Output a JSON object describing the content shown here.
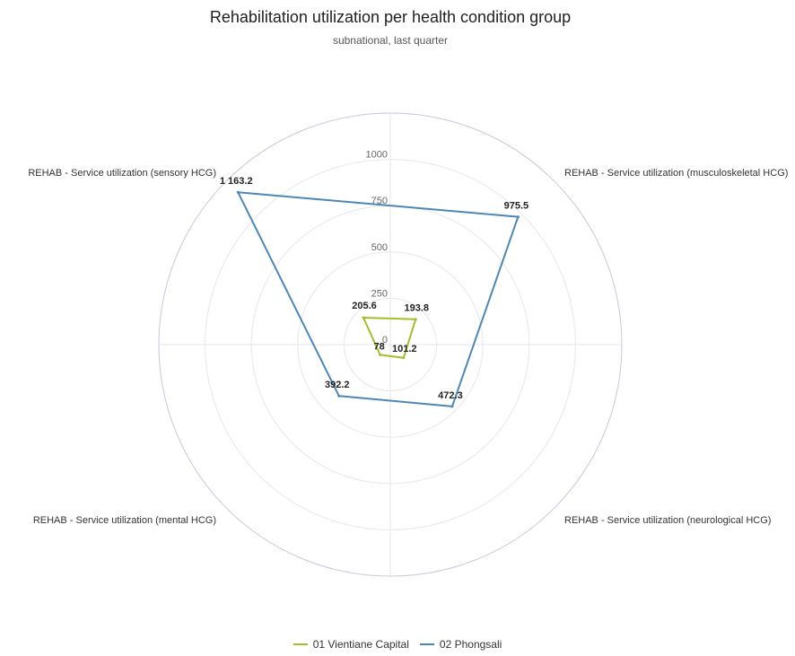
{
  "chart_data": {
    "type": "radar",
    "title": "Rehabilitation utilization per health condition group",
    "subtitle": "subnational, last quarter",
    "axes": [
      "REHAB - Service utilization (musculoskeletal HCG)",
      "REHAB - Service utilization (neurological HCG)",
      "REHAB - Service utilization (mental HCG)",
      "REHAB - Service utilization (sensory HCG)"
    ],
    "r_ticks": [
      0,
      250,
      500,
      750,
      1000
    ],
    "r_tick_labels": [
      "0",
      "250",
      "500",
      "750",
      "1000"
    ],
    "r_max": 1250,
    "series": [
      {
        "name": "01 Vientiane Capital",
        "color": "#a5bf2c",
        "values": [
          205.6,
          193.8,
          101.2,
          78
        ],
        "labels": [
          "205.6",
          "193.8",
          "101.2",
          "78"
        ]
      },
      {
        "name": "02 Phongsali",
        "color": "#4d87b8",
        "values": [
          1163.2,
          975.5,
          472.3,
          392.2
        ],
        "labels": [
          "1 163.2",
          "975.5",
          "472.3",
          "392.2"
        ]
      }
    ],
    "grid": true,
    "legend_position": "bottom"
  }
}
